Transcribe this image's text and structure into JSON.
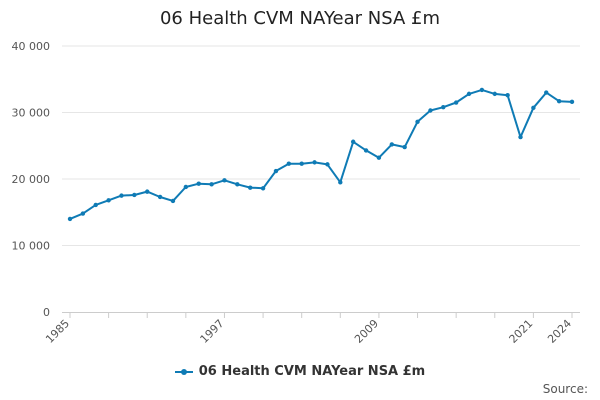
{
  "chart_data": {
    "type": "line",
    "title": "06 Health CVM NAYear NSA £m",
    "xlabel": "",
    "ylabel": "",
    "ylim": [
      0,
      40000
    ],
    "yticks": [
      0,
      10000,
      20000,
      30000,
      40000
    ],
    "ytick_labels": [
      "0",
      "10 000",
      "20 000",
      "30 000",
      "40 000"
    ],
    "xlim": [
      1985,
      2024
    ],
    "xticks": [
      1985,
      1997,
      2009,
      2021,
      2024
    ],
    "xtick_labels": [
      "1985",
      "1997",
      "2009",
      "2021",
      "2024"
    ],
    "grid": true,
    "legend_position": "bottom",
    "series": [
      {
        "name": "06 Health CVM NAYear NSA £m",
        "color": "#0f7bb5",
        "x": [
          1985,
          1986,
          1987,
          1988,
          1989,
          1990,
          1991,
          1992,
          1993,
          1994,
          1995,
          1996,
          1997,
          1998,
          1999,
          2000,
          2001,
          2002,
          2003,
          2004,
          2005,
          2006,
          2007,
          2008,
          2009,
          2010,
          2011,
          2012,
          2013,
          2014,
          2015,
          2016,
          2017,
          2018,
          2019,
          2020,
          2021,
          2022,
          2023,
          2024
        ],
        "values": [
          14000,
          14800,
          16100,
          16800,
          17500,
          17600,
          18100,
          17300,
          16700,
          18800,
          19300,
          19200,
          19800,
          19200,
          18700,
          18600,
          21200,
          22300,
          22300,
          22500,
          22200,
          19500,
          25600,
          24300,
          23200,
          25200,
          24800,
          28600,
          30300,
          30800,
          31500,
          32800,
          33400,
          32800,
          32600,
          26300,
          30700,
          33000,
          31700,
          31600
        ]
      }
    ]
  },
  "legend": {
    "label": "06 Health CVM NAYear NSA £m"
  },
  "source": {
    "label": "Source:"
  }
}
